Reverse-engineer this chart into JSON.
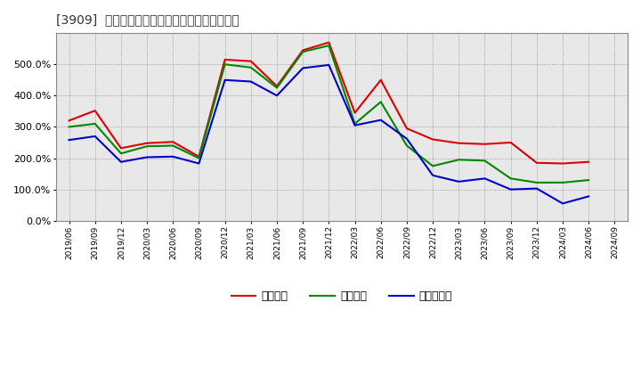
{
  "title": "[3909]  流動比率、当座比率、現預金比率の推移",
  "legend": [
    "流動比率",
    "当座比率",
    "現預金比率"
  ],
  "line_colors": [
    "#dd0000",
    "#008800",
    "#0000cc"
  ],
  "x_labels": [
    "2019/06",
    "2019/09",
    "2019/12",
    "2020/03",
    "2020/06",
    "2020/09",
    "2020/12",
    "2021/03",
    "2021/06",
    "2021/09",
    "2021/12",
    "2022/03",
    "2022/06",
    "2022/09",
    "2022/12",
    "2023/03",
    "2023/06",
    "2023/09",
    "2023/12",
    "2024/03",
    "2024/06",
    "2024/09"
  ],
  "流動比率": [
    320,
    352,
    232,
    248,
    252,
    205,
    515,
    510,
    430,
    545,
    570,
    345,
    450,
    295,
    260,
    248,
    245,
    250,
    185,
    183,
    188,
    null
  ],
  "当座比率": [
    300,
    310,
    215,
    238,
    240,
    200,
    500,
    490,
    425,
    540,
    560,
    310,
    380,
    240,
    175,
    195,
    192,
    135,
    122,
    122,
    130,
    null
  ],
  "現預金比率": [
    258,
    270,
    188,
    203,
    205,
    183,
    450,
    445,
    400,
    488,
    498,
    305,
    322,
    262,
    145,
    125,
    135,
    100,
    103,
    55,
    78,
    null
  ],
  "ylim": [
    0,
    600
  ],
  "yticks": [
    0,
    100,
    200,
    300,
    400,
    500
  ],
  "background_color": "#ffffff",
  "grid_color": "#aaaaaa",
  "plot_bg": "#e8e8e8"
}
